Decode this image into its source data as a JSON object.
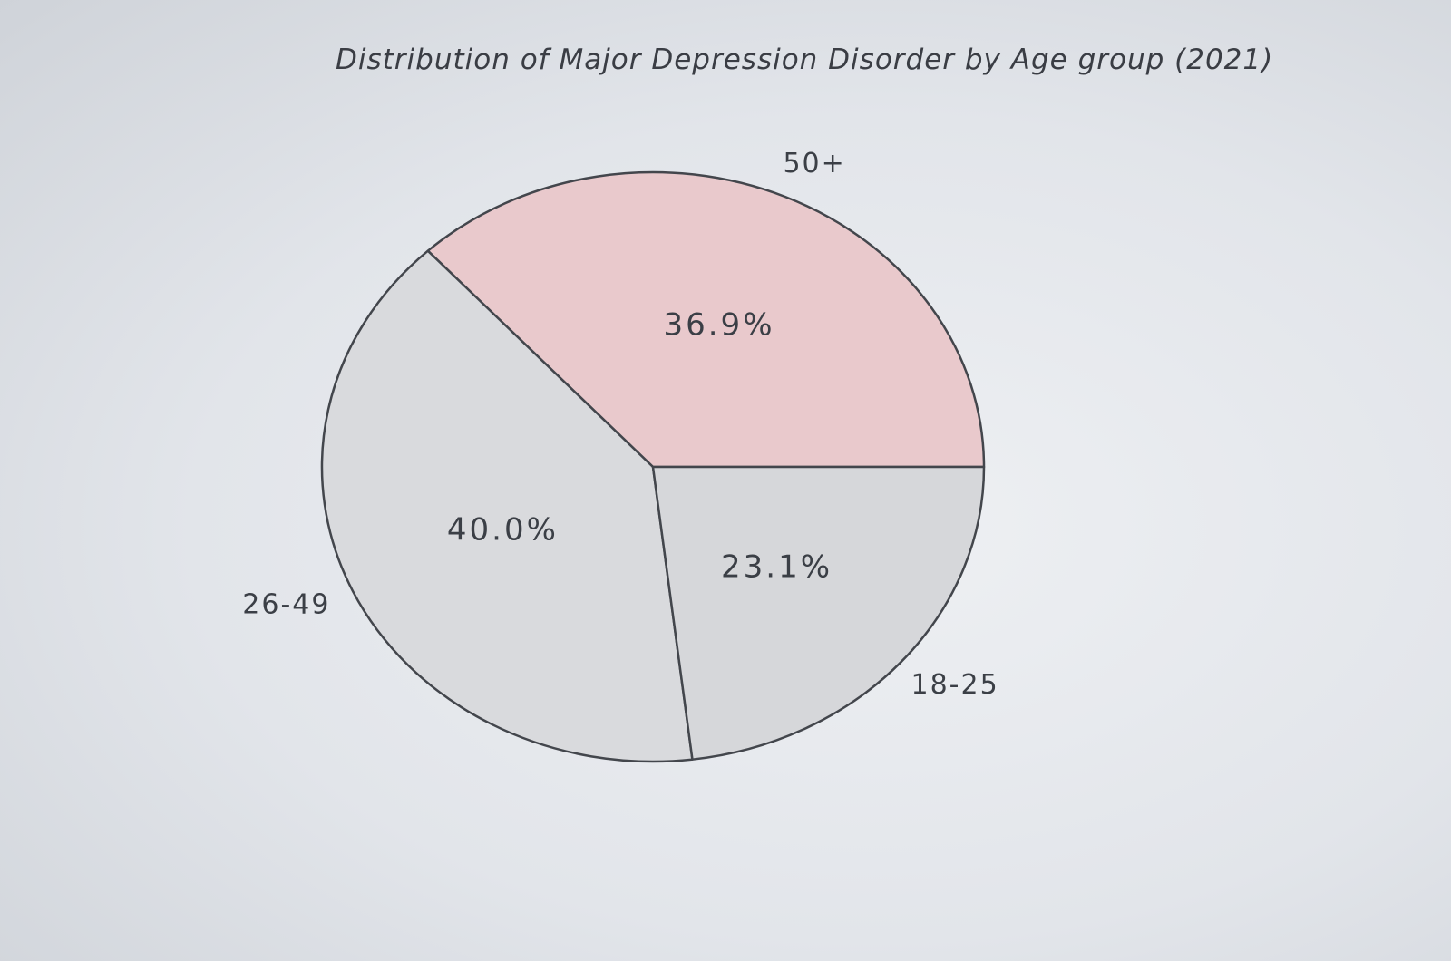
{
  "chart_data": {
    "type": "pie",
    "title": "Distribution of Major Depression Disorder by Age group (2021)",
    "slices": [
      {
        "category": "50+",
        "value": 36.9,
        "value_label": "36.9%",
        "color": "#e9c9cc"
      },
      {
        "category": "26-49",
        "value": 40.0,
        "value_label": "40.0%",
        "color": "#d9dadd"
      },
      {
        "category": "18-25",
        "value": 23.1,
        "value_label": "23.1%",
        "color": "#d6d7da"
      }
    ],
    "start_angle_deg": 0,
    "direction": "counterclockwise",
    "legend": "none",
    "outline_color": "#43464c"
  }
}
